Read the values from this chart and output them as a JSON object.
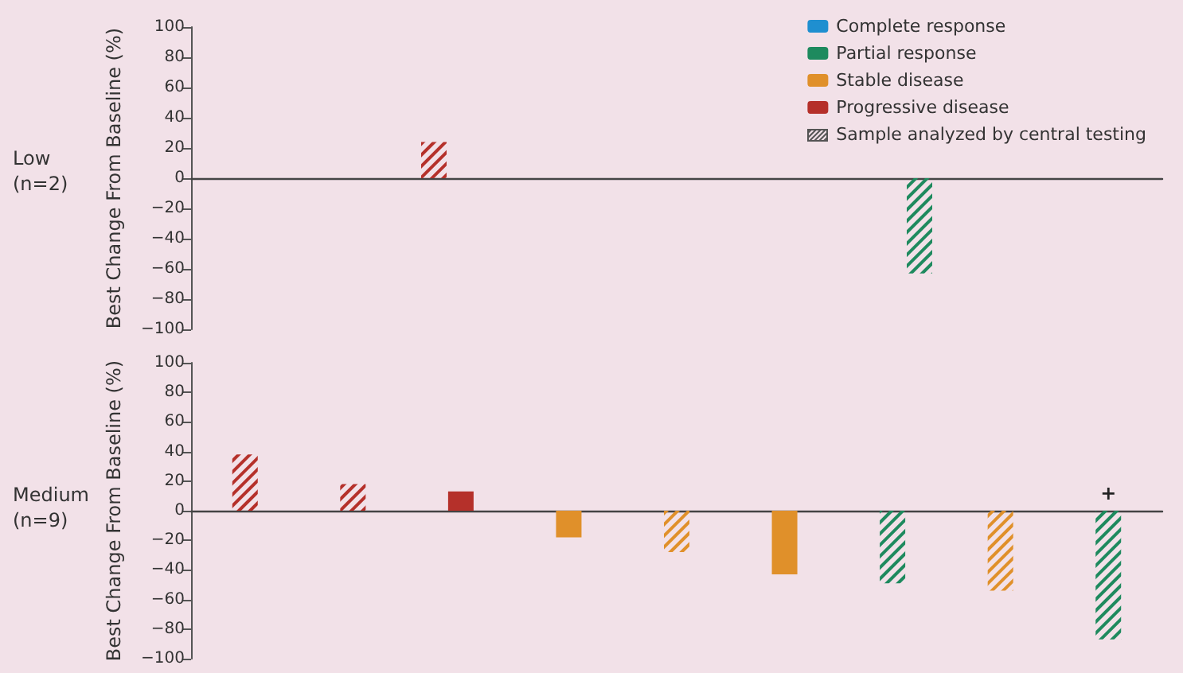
{
  "chart_data": [
    {
      "type": "bar",
      "ylabel": "Best Change From Baseline (%)",
      "categories": [
        null,
        null
      ],
      "ylim": [
        -100,
        100
      ],
      "yticks": [
        -100,
        -80,
        -60,
        -40,
        -20,
        0,
        20,
        40,
        60,
        80,
        100
      ],
      "legend": "top right",
      "annotations": [
        "Low\n(n=2)"
      ],
      "series": [
        {
          "name": "Complete response",
          "color": "#1f8fd0",
          "values": [
            null,
            null
          ]
        },
        {
          "name": "Partial response",
          "color": "#1e8a5e",
          "values": [
            null,
            null
          ]
        },
        {
          "name": "Stable disease",
          "color": "#e0902a",
          "values": [
            null,
            null
          ]
        },
        {
          "name": "Progressive disease",
          "color": "#b5302a",
          "values": [
            null,
            null
          ]
        },
        {
          "name": "Sample analyzed by central testing",
          "color": "#555555",
          "values": [
            24,
            -63
          ],
          "colors": [
            "#b5302a",
            "#1e8a5e"
          ]
        }
      ]
    },
    {
      "type": "bar",
      "ylabel": "Best Change From Baseline (%)",
      "categories": [
        null,
        null,
        null,
        null,
        null,
        null,
        null,
        null,
        null
      ],
      "ylim": [
        -100,
        100
      ],
      "yticks": [
        -100,
        -80,
        -60,
        -40,
        -20,
        0,
        20,
        40,
        60,
        80,
        100
      ],
      "annotations": [
        "Medium\n(n=9)"
      ],
      "series": [
        {
          "color": "#e0902a",
          "values": [
            null,
            null,
            null,
            -18,
            null,
            -43,
            null,
            null,
            null
          ]
        },
        {
          "color": "#b5302a",
          "values": [
            null,
            null,
            13,
            null,
            null,
            null,
            null,
            null,
            null
          ]
        },
        {
          "color": "#555555",
          "values": [
            38,
            18,
            null,
            null,
            -28,
            null,
            -49,
            -54,
            -87
          ],
          "colors": [
            "#b5302a",
            "#b5302a",
            null,
            null,
            "#e0902a",
            null,
            "#1e8a5e",
            "#e0902a",
            "#1e8a5e"
          ],
          "value_labels": [
            null,
            null,
            null,
            null,
            null,
            null,
            null,
            null,
            "+"
          ]
        }
      ]
    }
  ]
}
